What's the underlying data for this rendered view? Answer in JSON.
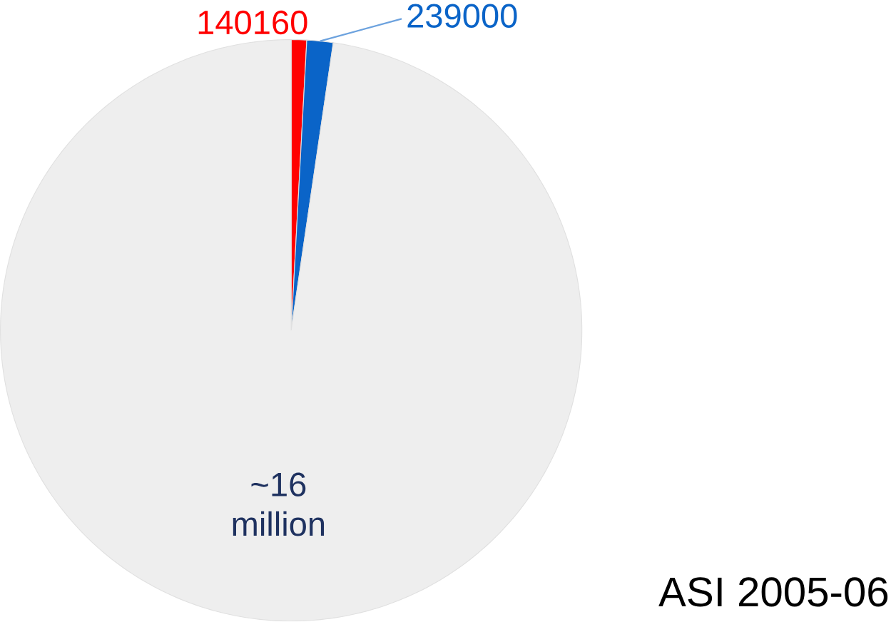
{
  "chart_data": {
    "type": "pie",
    "categories": [
      null,
      null,
      null
    ],
    "values": [
      140160,
      239000,
      16000000
    ],
    "value_labels": [
      "140160",
      "239000",
      "~16 million"
    ],
    "colors": [
      "#ff0000",
      "#0a64c8",
      "#eeeeee"
    ],
    "annotations": [
      "ASI 2005-06"
    ]
  }
}
